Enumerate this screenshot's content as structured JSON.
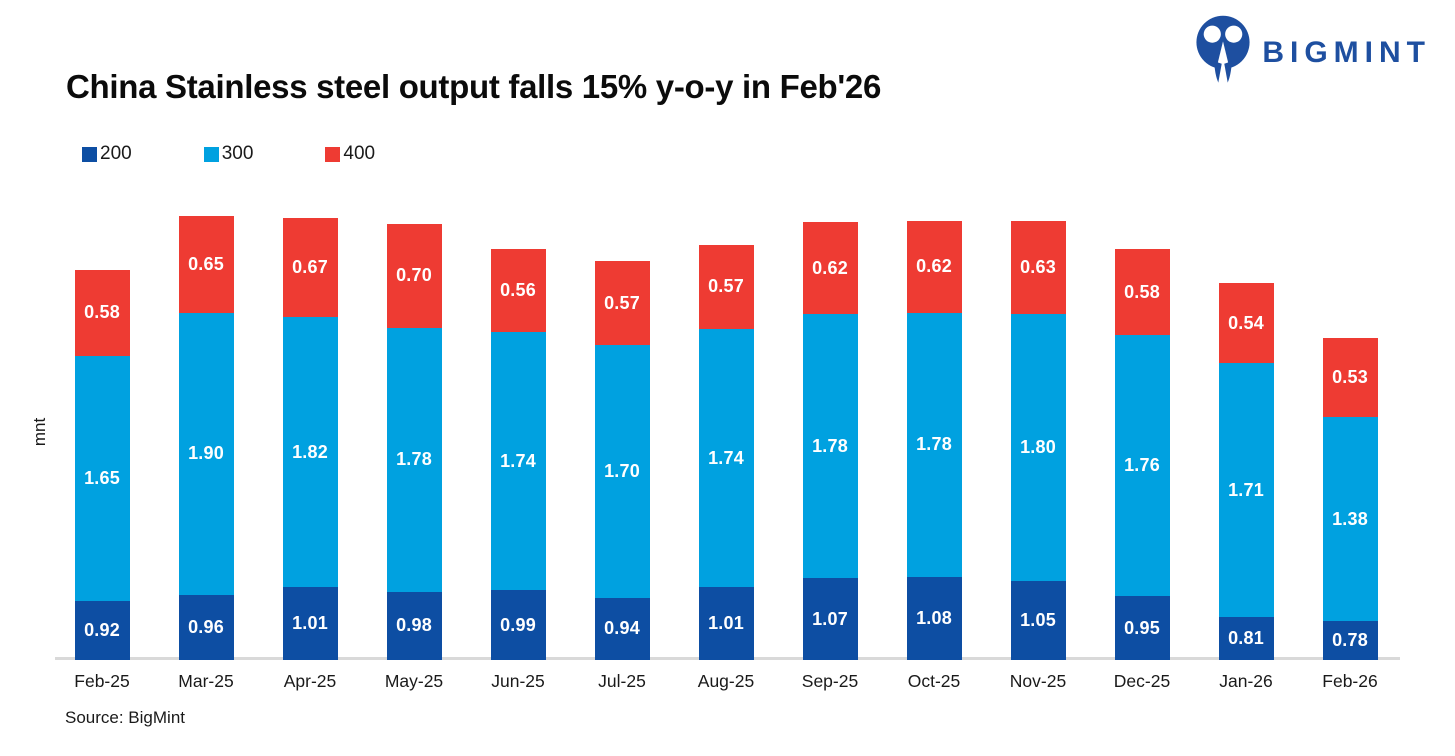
{
  "header": {
    "title": "China Stainless steel output falls 15% y-o-y in Feb'26",
    "brand": {
      "name": "BIGMINT",
      "logo_color": "#1e4fa0"
    }
  },
  "chart_data": {
    "type": "bar",
    "stacked": true,
    "title": "China Stainless steel output falls 15% y-o-y in Feb'26",
    "ylabel": "mnt",
    "xlabel": "",
    "unit": "mnt",
    "ylim": [
      0.52,
      3.6
    ],
    "grid": false,
    "legend_position": "top-left",
    "value_label_decimals": 2,
    "categories": [
      "Feb-25",
      "Mar-25",
      "Apr-25",
      "May-25",
      "Jun-25",
      "Jul-25",
      "Aug-25",
      "Sep-25",
      "Oct-25",
      "Nov-25",
      "Dec-25",
      "Jan-26",
      "Feb-26"
    ],
    "series": [
      {
        "name": "200",
        "color": "#0d4ea3",
        "values": [
          0.92,
          0.96,
          1.01,
          0.98,
          0.99,
          0.94,
          1.01,
          1.07,
          1.08,
          1.05,
          0.95,
          0.81,
          0.78
        ]
      },
      {
        "name": "300",
        "color": "#00a1e0",
        "values": [
          1.65,
          1.9,
          1.82,
          1.78,
          1.74,
          1.7,
          1.74,
          1.78,
          1.78,
          1.8,
          1.76,
          1.71,
          1.38
        ]
      },
      {
        "name": "400",
        "color": "#ee3b33",
        "values": [
          0.58,
          0.65,
          0.67,
          0.7,
          0.56,
          0.57,
          0.57,
          0.62,
          0.62,
          0.63,
          0.58,
          0.54,
          0.53
        ]
      }
    ]
  },
  "footer": {
    "source": "Source: BigMint"
  }
}
